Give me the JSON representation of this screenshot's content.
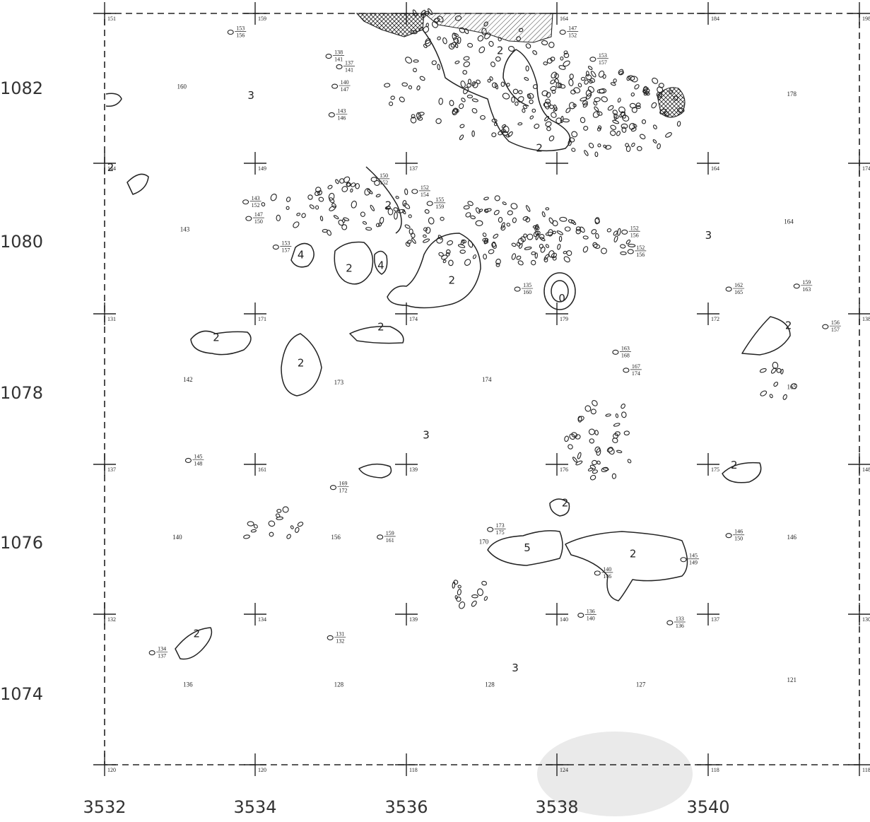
{
  "map": {
    "x_ticks": [
      "3532",
      "3534",
      "3536",
      "3538",
      "3540"
    ],
    "y_ticks": [
      "1082",
      "1080",
      "1078",
      "1076",
      "1074"
    ],
    "grid_corners": [
      [
        "151",
        "159",
        "",
        "164",
        "184",
        "198"
      ],
      [
        "144",
        "149",
        "137",
        "",
        "164",
        "174"
      ],
      [
        "131",
        "171",
        "174",
        "179",
        "172",
        "138"
      ],
      [
        "137",
        "161",
        "139",
        "176",
        "175",
        "148"
      ],
      [
        "132",
        "134",
        "139",
        "140",
        "137",
        "130"
      ],
      [
        "120",
        "120",
        "118",
        "124",
        "118",
        "118"
      ]
    ],
    "cell_values": [
      {
        "text": "160",
        "col": 0.48,
        "row": 0.5
      },
      {
        "text": "178",
        "col": 4.52,
        "row": 0.55
      },
      {
        "text": "143",
        "col": 0.5,
        "row": 1.45
      },
      {
        "text": "164",
        "col": 4.5,
        "row": 1.4
      },
      {
        "text": "142",
        "col": 0.52,
        "row": 2.45
      },
      {
        "text": "173",
        "col": 1.52,
        "row": 2.47
      },
      {
        "text": "174",
        "col": 2.5,
        "row": 2.45
      },
      {
        "text": "165",
        "col": 4.52,
        "row": 2.5
      },
      {
        "text": "140",
        "col": 0.45,
        "row": 3.5
      },
      {
        "text": "156",
        "col": 1.5,
        "row": 3.5
      },
      {
        "text": "170",
        "col": 2.48,
        "row": 3.53
      },
      {
        "text": "146",
        "col": 4.52,
        "row": 3.5
      },
      {
        "text": "136",
        "col": 0.52,
        "row": 4.48
      },
      {
        "text": "128",
        "col": 1.52,
        "row": 4.48
      },
      {
        "text": "128",
        "col": 2.52,
        "row": 4.48
      },
      {
        "text": "127",
        "col": 3.52,
        "row": 4.48
      },
      {
        "text": "121",
        "col": 4.52,
        "row": 4.45
      }
    ],
    "class_labels": [
      {
        "text": "3",
        "col": 0.97,
        "row": 0.57
      },
      {
        "text": "2",
        "col": 2.62,
        "row": 0.27
      },
      {
        "text": "2",
        "col": 2.88,
        "row": 0.92
      },
      {
        "text": "2",
        "col": 0.04,
        "row": 1.05
      },
      {
        "text": "2",
        "col": 1.88,
        "row": 1.3
      },
      {
        "text": "4",
        "col": 1.3,
        "row": 1.63
      },
      {
        "text": "2",
        "col": 1.62,
        "row": 1.72
      },
      {
        "text": "4",
        "col": 1.83,
        "row": 1.7
      },
      {
        "text": "2",
        "col": 2.3,
        "row": 1.8
      },
      {
        "text": "0",
        "col": 3.03,
        "row": 1.92
      },
      {
        "text": "3",
        "col": 4.0,
        "row": 1.5
      },
      {
        "text": "2",
        "col": 0.74,
        "row": 2.18
      },
      {
        "text": "2",
        "col": 1.3,
        "row": 2.35
      },
      {
        "text": "2",
        "col": 1.83,
        "row": 2.11
      },
      {
        "text": "2",
        "col": 4.53,
        "row": 2.1
      },
      {
        "text": "3",
        "col": 2.13,
        "row": 2.83
      },
      {
        "text": "2",
        "col": 4.17,
        "row": 3.03
      },
      {
        "text": "2",
        "col": 3.05,
        "row": 3.28
      },
      {
        "text": "5",
        "col": 2.8,
        "row": 3.58
      },
      {
        "text": "2",
        "col": 3.5,
        "row": 3.62
      },
      {
        "text": "2",
        "col": 0.61,
        "row": 4.15
      },
      {
        "text": "3",
        "col": 2.72,
        "row": 4.38
      }
    ],
    "fractions": [
      {
        "n": "153",
        "d": "156",
        "col": 0.9,
        "row": 0.12
      },
      {
        "n": "138",
        "d": "141",
        "col": 1.55,
        "row": 0.28
      },
      {
        "n": "137",
        "d": "141",
        "col": 1.62,
        "row": 0.35
      },
      {
        "n": "140",
        "d": "147",
        "col": 1.59,
        "row": 0.48
      },
      {
        "n": "143",
        "d": "146",
        "col": 1.57,
        "row": 0.67
      },
      {
        "n": "147",
        "d": "152",
        "col": 3.1,
        "row": 0.12
      },
      {
        "n": "153",
        "d": "157",
        "col": 3.3,
        "row": 0.3
      },
      {
        "n": "143",
        "d": "152",
        "col": 1.0,
        "row": 1.25
      },
      {
        "n": "147",
        "d": "150",
        "col": 1.02,
        "row": 1.36
      },
      {
        "n": "153",
        "d": "157",
        "col": 1.2,
        "row": 1.55
      },
      {
        "n": "150",
        "d": "152",
        "col": 1.85,
        "row": 1.1
      },
      {
        "n": "152",
        "d": "154",
        "col": 2.12,
        "row": 1.18
      },
      {
        "n": "155",
        "d": "159",
        "col": 2.22,
        "row": 1.26
      },
      {
        "n": "152",
        "d": "156",
        "col": 3.51,
        "row": 1.45
      },
      {
        "n": "152",
        "d": "156",
        "col": 3.55,
        "row": 1.58
      },
      {
        "n": "135",
        "d": "160",
        "col": 2.8,
        "row": 1.83
      },
      {
        "n": "163",
        "d": "168",
        "col": 3.45,
        "row": 2.25
      },
      {
        "n": "167",
        "d": "174",
        "col": 3.52,
        "row": 2.37
      },
      {
        "n": "162",
        "d": "165",
        "col": 4.2,
        "row": 1.83
      },
      {
        "n": "159",
        "d": "163",
        "col": 4.65,
        "row": 1.81
      },
      {
        "n": "156",
        "d": "157",
        "col": 4.84,
        "row": 2.08
      },
      {
        "n": "145",
        "d": "148",
        "col": 0.62,
        "row": 2.97
      },
      {
        "n": "169",
        "d": "172",
        "col": 1.58,
        "row": 3.15
      },
      {
        "n": "173",
        "d": "175",
        "col": 2.62,
        "row": 3.43
      },
      {
        "n": "159",
        "d": "161",
        "col": 1.89,
        "row": 3.48
      },
      {
        "n": "146",
        "d": "150",
        "col": 4.2,
        "row": 3.47
      },
      {
        "n": "145",
        "d": "149",
        "col": 3.9,
        "row": 3.63
      },
      {
        "n": "140",
        "d": "146",
        "col": 3.33,
        "row": 3.72
      },
      {
        "n": "131",
        "d": "132",
        "col": 1.56,
        "row": 4.15
      },
      {
        "n": "134",
        "d": "137",
        "col": 0.38,
        "row": 4.25
      },
      {
        "n": "133",
        "d": "136",
        "col": 3.81,
        "row": 4.05
      },
      {
        "n": "136",
        "d": "140",
        "col": 3.22,
        "row": 4.0
      }
    ]
  }
}
